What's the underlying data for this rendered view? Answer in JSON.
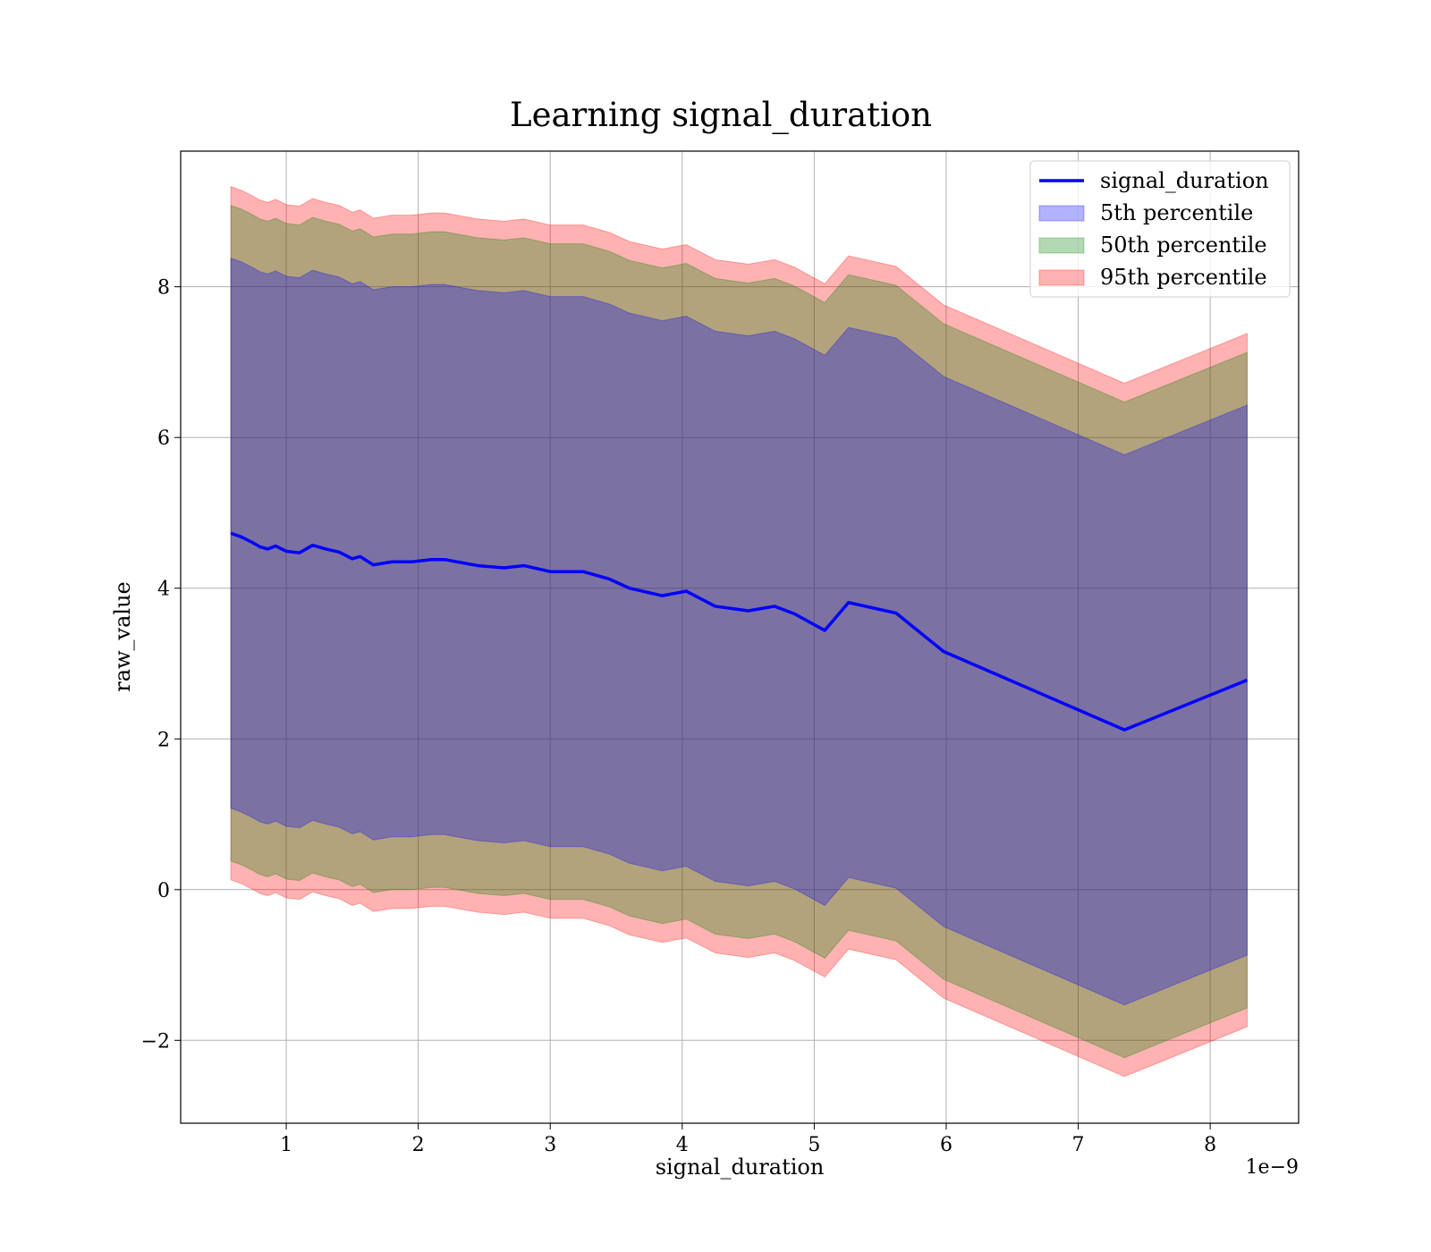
{
  "chart_data": {
    "type": "area",
    "title": "Learning signal_duration",
    "xlabel": "signal_duration",
    "ylabel": "raw_value",
    "x_offset_text": "1e−9",
    "xlim": [
      0.2,
      8.67
    ],
    "ylim": [
      -3.1,
      9.8
    ],
    "x_ticks": [
      {
        "value": 1,
        "label": "1"
      },
      {
        "value": 2,
        "label": "2"
      },
      {
        "value": 3,
        "label": "3"
      },
      {
        "value": 4,
        "label": "4"
      },
      {
        "value": 5,
        "label": "5"
      },
      {
        "value": 6,
        "label": "6"
      },
      {
        "value": 7,
        "label": "7"
      },
      {
        "value": 8,
        "label": "8"
      }
    ],
    "y_ticks": [
      {
        "value": -2,
        "label": "−2"
      },
      {
        "value": 0,
        "label": "0"
      },
      {
        "value": 2,
        "label": "2"
      },
      {
        "value": 4,
        "label": "4"
      },
      {
        "value": 6,
        "label": "6"
      },
      {
        "value": 8,
        "label": "8"
      }
    ],
    "grid": true,
    "legend_position": "top-right",
    "x": [
      0.58,
      0.66,
      0.74,
      0.8,
      0.86,
      0.92,
      1.0,
      1.1,
      1.2,
      1.3,
      1.4,
      1.5,
      1.56,
      1.66,
      1.8,
      1.95,
      2.1,
      2.2,
      2.45,
      2.65,
      2.8,
      3.0,
      3.25,
      3.45,
      3.6,
      3.85,
      4.03,
      4.25,
      4.5,
      4.7,
      4.85,
      5.08,
      5.26,
      5.62,
      5.98,
      7.35,
      8.28
    ],
    "series": [
      {
        "name": "signal_duration",
        "kind": "line",
        "color": "#0000ff",
        "values": [
          4.73,
          4.68,
          4.61,
          4.55,
          4.52,
          4.56,
          4.49,
          4.47,
          4.57,
          4.52,
          4.48,
          4.39,
          4.42,
          4.31,
          4.35,
          4.35,
          4.38,
          4.38,
          4.3,
          4.27,
          4.3,
          4.22,
          4.22,
          4.12,
          4.0,
          3.9,
          3.96,
          3.76,
          3.7,
          3.76,
          3.66,
          3.44,
          3.81,
          3.67,
          3.16,
          2.12,
          2.78
        ]
      },
      {
        "name": "5th percentile",
        "kind": "band",
        "color": "#0000ff",
        "upper": [
          8.38,
          8.33,
          8.26,
          8.2,
          8.17,
          8.21,
          8.14,
          8.12,
          8.22,
          8.17,
          8.13,
          8.04,
          8.07,
          7.96,
          8.0,
          8.0,
          8.03,
          8.03,
          7.95,
          7.92,
          7.95,
          7.87,
          7.87,
          7.77,
          7.65,
          7.55,
          7.61,
          7.41,
          7.35,
          7.41,
          7.31,
          7.09,
          7.46,
          7.32,
          6.81,
          5.77,
          6.43
        ],
        "lower": [
          1.08,
          1.03,
          0.96,
          0.9,
          0.87,
          0.91,
          0.84,
          0.82,
          0.92,
          0.87,
          0.83,
          0.74,
          0.77,
          0.66,
          0.7,
          0.7,
          0.73,
          0.73,
          0.65,
          0.62,
          0.65,
          0.57,
          0.57,
          0.47,
          0.35,
          0.25,
          0.31,
          0.11,
          0.05,
          0.11,
          0.01,
          -0.21,
          0.16,
          0.02,
          -0.49,
          -1.53,
          -0.87
        ]
      },
      {
        "name": "50th percentile",
        "kind": "band",
        "color": "#008000",
        "upper": [
          9.08,
          9.03,
          8.96,
          8.9,
          8.87,
          8.91,
          8.84,
          8.82,
          8.92,
          8.87,
          8.83,
          8.74,
          8.77,
          8.66,
          8.7,
          8.7,
          8.73,
          8.73,
          8.65,
          8.62,
          8.65,
          8.57,
          8.57,
          8.47,
          8.35,
          8.25,
          8.31,
          8.11,
          8.05,
          8.11,
          8.01,
          7.79,
          8.16,
          8.02,
          7.51,
          6.47,
          7.13
        ],
        "lower": [
          0.38,
          0.33,
          0.26,
          0.2,
          0.17,
          0.21,
          0.14,
          0.12,
          0.22,
          0.17,
          0.13,
          0.04,
          0.07,
          -0.04,
          0.0,
          0.0,
          0.03,
          0.03,
          -0.05,
          -0.08,
          -0.05,
          -0.13,
          -0.13,
          -0.23,
          -0.35,
          -0.45,
          -0.39,
          -0.59,
          -0.65,
          -0.59,
          -0.69,
          -0.91,
          -0.54,
          -0.68,
          -1.19,
          -2.23,
          -1.57
        ]
      },
      {
        "name": "95th percentile",
        "kind": "band",
        "color": "#ff0000",
        "upper": [
          9.33,
          9.28,
          9.21,
          9.15,
          9.12,
          9.16,
          9.09,
          9.07,
          9.17,
          9.12,
          9.08,
          8.99,
          9.02,
          8.91,
          8.95,
          8.95,
          8.98,
          8.98,
          8.9,
          8.87,
          8.9,
          8.82,
          8.82,
          8.72,
          8.6,
          8.5,
          8.56,
          8.36,
          8.3,
          8.36,
          8.26,
          8.04,
          8.41,
          8.27,
          7.76,
          6.72,
          7.38
        ],
        "lower": [
          0.13,
          0.08,
          0.01,
          -0.05,
          -0.08,
          -0.04,
          -0.11,
          -0.13,
          -0.03,
          -0.08,
          -0.12,
          -0.21,
          -0.18,
          -0.29,
          -0.25,
          -0.25,
          -0.22,
          -0.22,
          -0.3,
          -0.33,
          -0.3,
          -0.38,
          -0.38,
          -0.48,
          -0.6,
          -0.7,
          -0.64,
          -0.84,
          -0.9,
          -0.84,
          -0.94,
          -1.16,
          -0.79,
          -0.93,
          -1.44,
          -2.48,
          -1.82
        ]
      }
    ]
  }
}
